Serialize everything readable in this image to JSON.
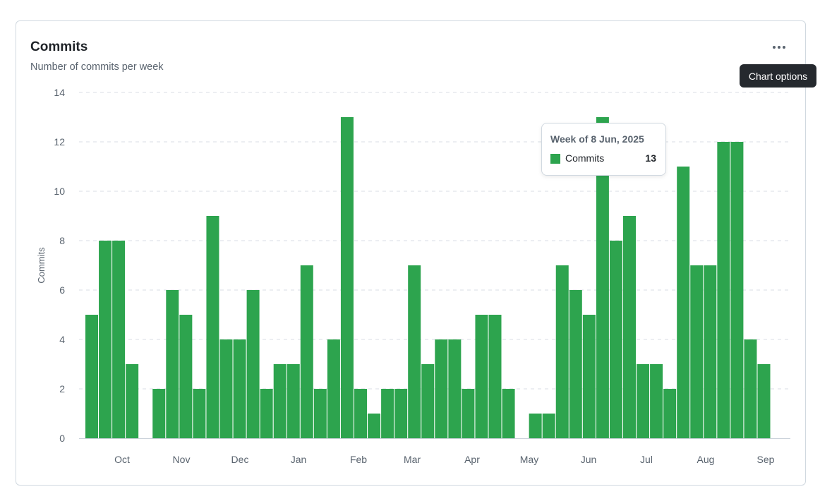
{
  "card": {
    "title": "Commits",
    "subtitle": "Number of commits per week",
    "options_tooltip": "Chart options",
    "menu_icon": "kebab-horizontal-icon"
  },
  "tooltip": {
    "title": "Week of 8 Jun, 2025",
    "series": "Commits",
    "value": "13"
  },
  "chart_data": {
    "type": "bar",
    "title": "Commits",
    "subtitle": "Number of commits per week",
    "xlabel": "",
    "ylabel": "Commits",
    "ylim": [
      0,
      14
    ],
    "yticks": [
      "0",
      "2",
      "4",
      "6",
      "8",
      "10",
      "12",
      "14"
    ],
    "xtick_labels": [
      "Oct",
      "Nov",
      "Dec",
      "Jan",
      "Feb",
      "Mar",
      "Apr",
      "May",
      "Jun",
      "Jul",
      "Aug",
      "Sep"
    ],
    "grid": true,
    "color": "#2da44e",
    "series": [
      {
        "name": "Commits",
        "values": [
          5,
          8,
          8,
          3,
          0,
          2,
          6,
          5,
          2,
          9,
          4,
          4,
          6,
          2,
          3,
          3,
          7,
          2,
          4,
          13,
          2,
          1,
          2,
          2,
          7,
          3,
          4,
          4,
          2,
          5,
          5,
          2,
          0,
          1,
          1,
          7,
          6,
          5,
          13,
          8,
          9,
          3,
          3,
          2,
          11,
          7,
          7,
          12,
          12,
          4,
          3
        ]
      }
    ]
  }
}
